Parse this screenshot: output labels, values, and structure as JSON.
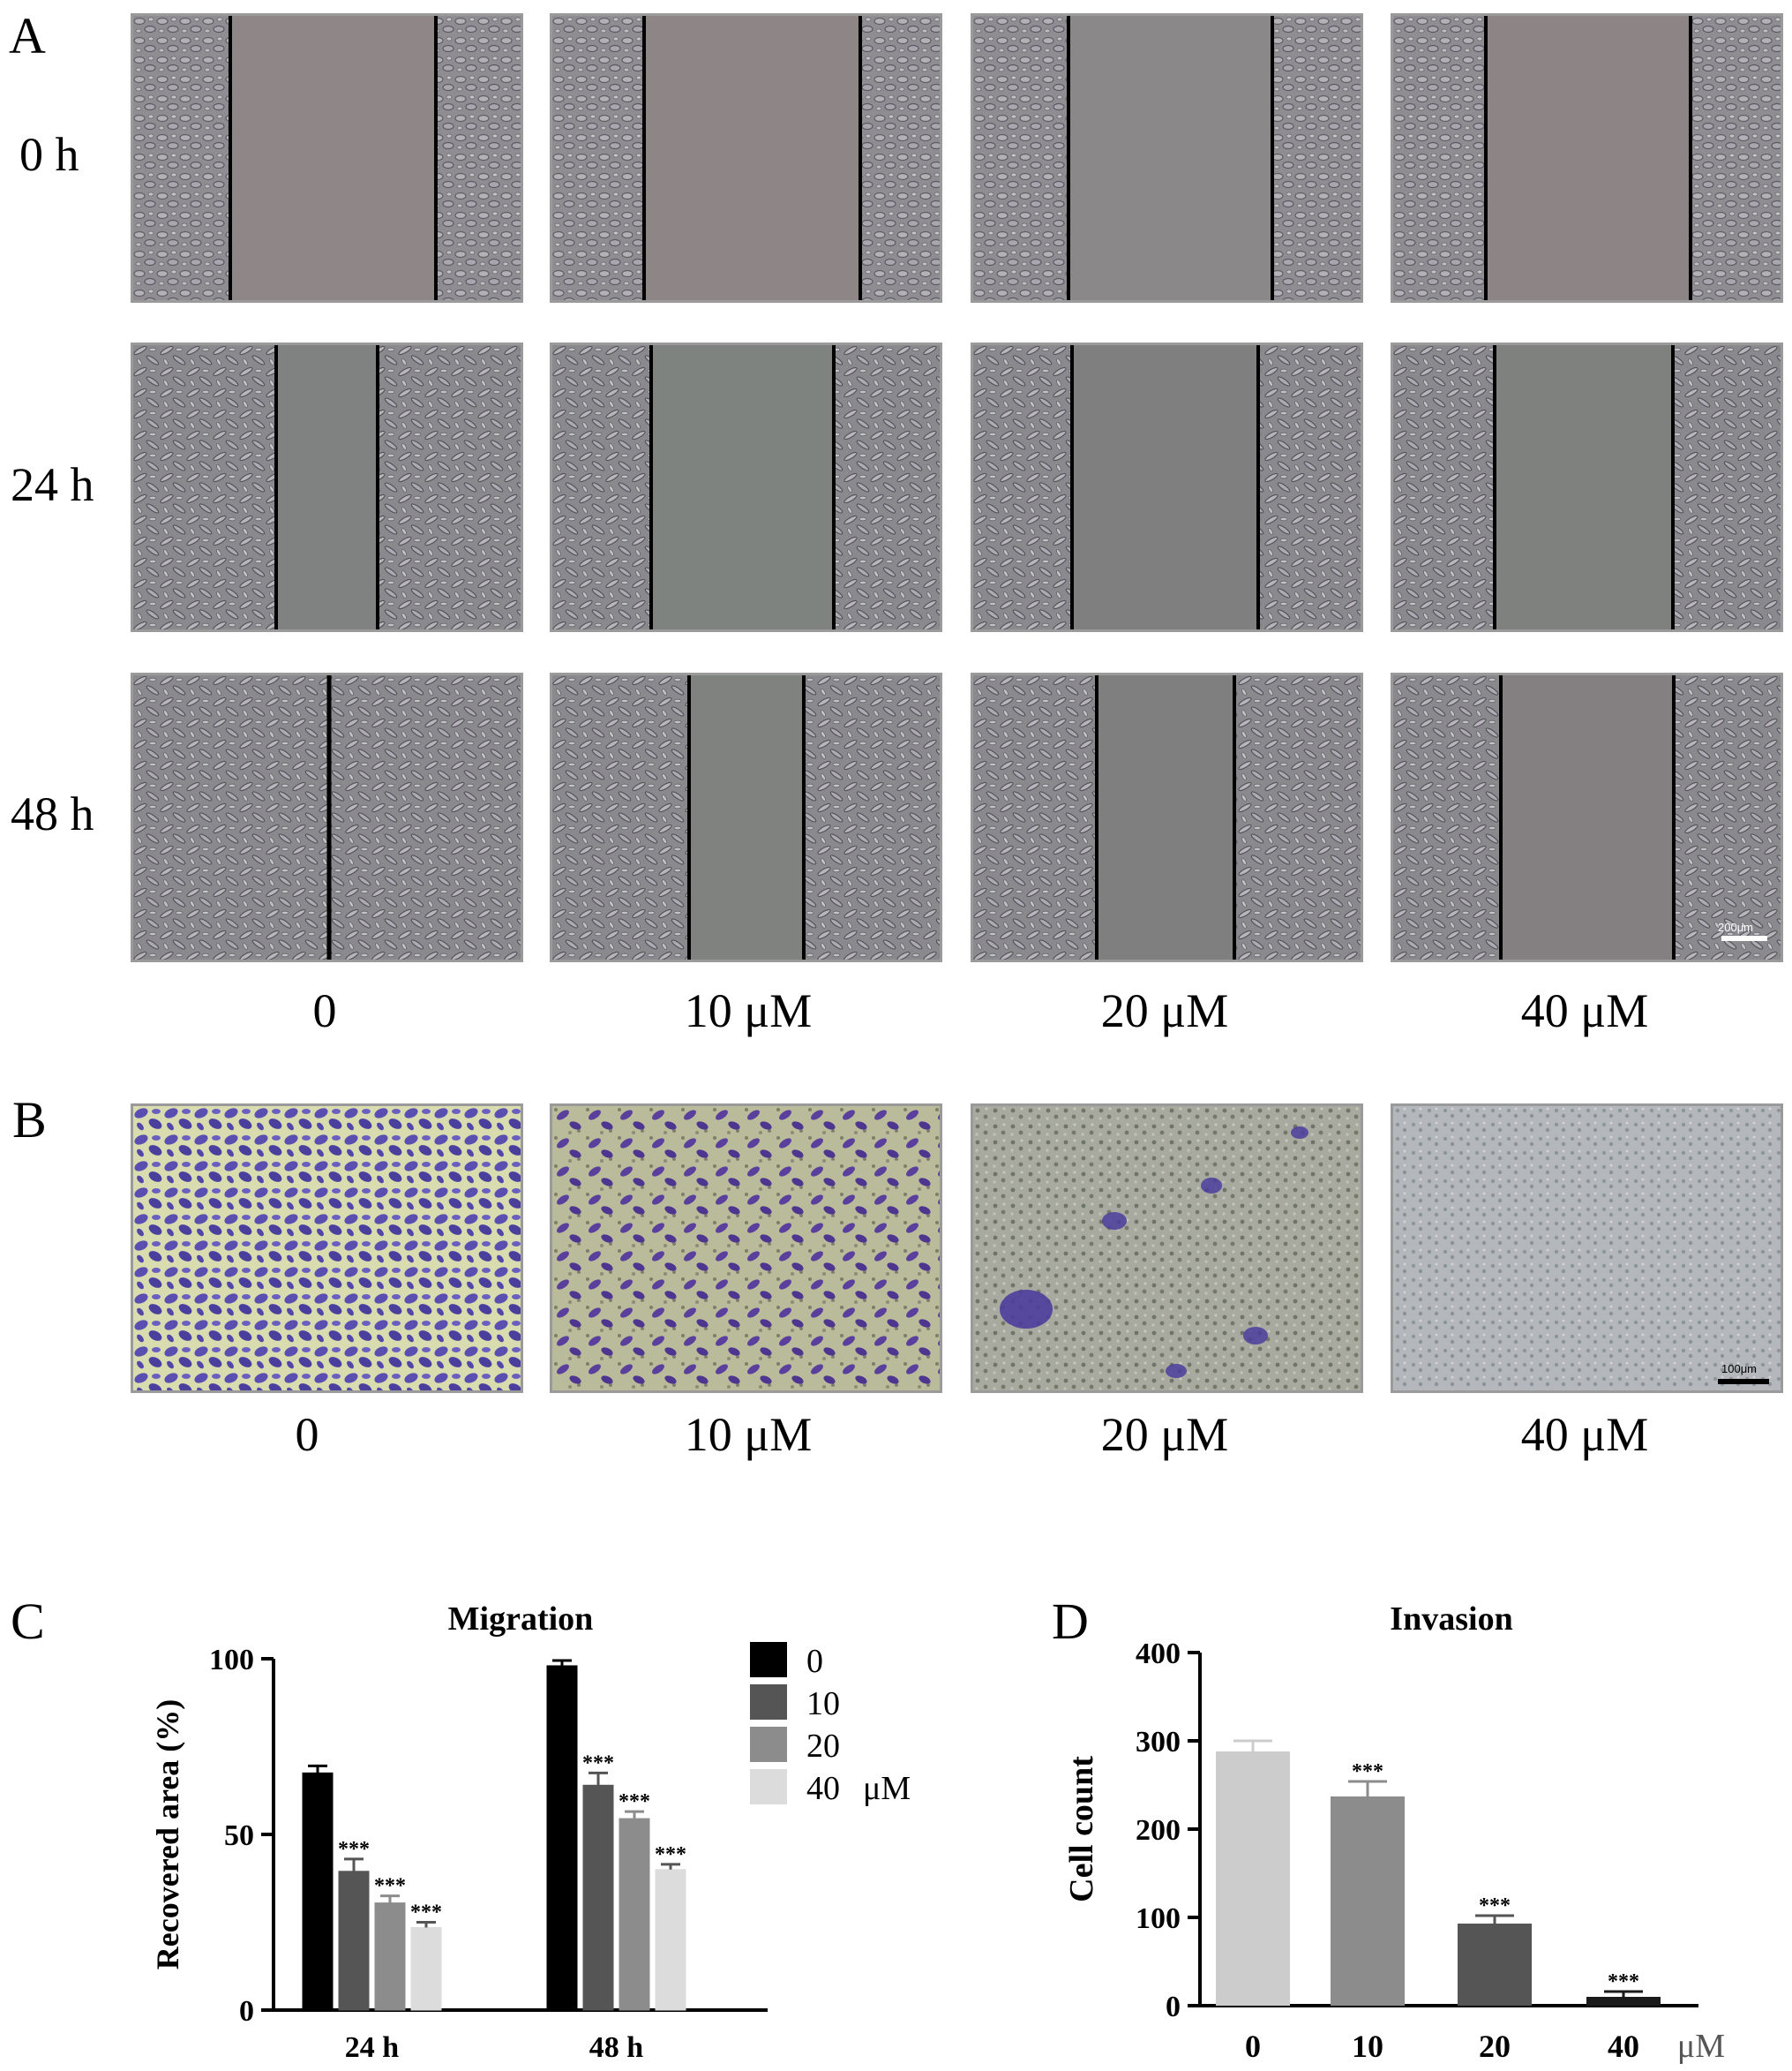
{
  "panel_a": {
    "letter": "A",
    "row_labels": [
      "0 h",
      "24 h",
      "48 h"
    ],
    "col_labels": [
      "0",
      "10 μM",
      "20 μM",
      "40 μM"
    ],
    "scale_bar": "200μm"
  },
  "panel_b": {
    "letter": "B",
    "col_labels": [
      "0",
      "10 μM",
      "20 μM",
      "40 μM"
    ],
    "scale_bar": "100μm"
  },
  "panel_c": {
    "letter": "C",
    "significance": "***"
  },
  "panel_d": {
    "letter": "D",
    "significance": "***"
  },
  "chart_data": [
    {
      "type": "bar",
      "title": "Migration",
      "ylabel": "Recovered area (%)",
      "xlabel": "",
      "categories": [
        "24 h",
        "48 h"
      ],
      "ylim": [
        0,
        100
      ],
      "yticks": [
        0,
        50,
        100
      ],
      "legend_position": "right",
      "legend_unit": "μM",
      "series": [
        {
          "name": "0",
          "values": [
            67.5,
            98
          ],
          "errors": [
            2,
            1.5
          ],
          "color": "#000000",
          "significance": [
            "",
            ""
          ]
        },
        {
          "name": "10",
          "values": [
            39.5,
            64
          ],
          "errors": [
            3.5,
            3.5
          ],
          "color": "#555555",
          "significance": [
            "***",
            "***"
          ]
        },
        {
          "name": "20",
          "values": [
            30.5,
            54.5
          ],
          "errors": [
            2,
            2
          ],
          "color": "#8c8c8c",
          "significance": [
            "***",
            "***"
          ]
        },
        {
          "name": "40",
          "values": [
            23.5,
            40
          ],
          "errors": [
            1.5,
            1.5
          ],
          "color": "#dcdcdc",
          "significance": [
            "***",
            "***"
          ]
        }
      ]
    },
    {
      "type": "bar",
      "title": "Invasion",
      "ylabel": "Cell count",
      "xlabel": "μM",
      "categories": [
        "0",
        "10",
        "20",
        "40"
      ],
      "ylim": [
        0,
        400
      ],
      "yticks": [
        0,
        100,
        200,
        300,
        400
      ],
      "values": [
        288,
        237,
        93,
        10
      ],
      "errors": [
        12,
        17,
        9,
        6
      ],
      "colors": [
        "#cccccc",
        "#8c8c8c",
        "#555555",
        "#1a1a1a"
      ],
      "significance": [
        "",
        "***",
        "***",
        "***"
      ]
    }
  ]
}
